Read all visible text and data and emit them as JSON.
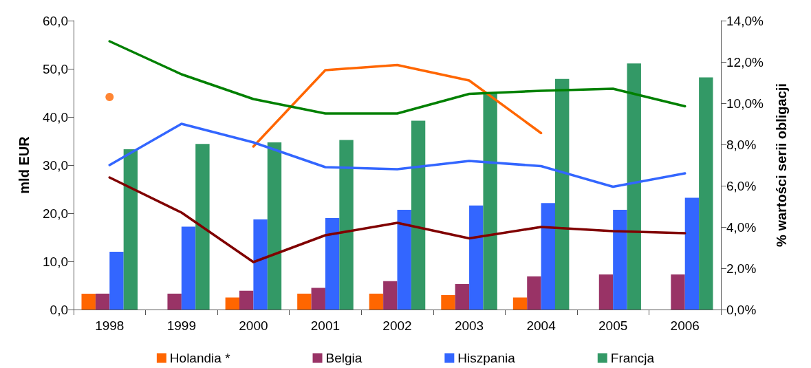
{
  "chart_data": {
    "type": "bar",
    "ylabel": "mld EUR",
    "y2label": "% wartości serii obligacji",
    "categories": [
      "1998",
      "1999",
      "2000",
      "2001",
      "2002",
      "2003",
      "2004",
      "2005",
      "2006"
    ],
    "series": [
      {
        "name": "Holandia *",
        "color": "#ff6600",
        "values": [
          3.3,
          null,
          2.5,
          3.3,
          3.3,
          3.0,
          2.5,
          null,
          null
        ]
      },
      {
        "name": "Belgia",
        "color": "#993366",
        "values": [
          3.3,
          3.3,
          3.9,
          4.5,
          5.9,
          5.3,
          6.9,
          7.3,
          7.3
        ]
      },
      {
        "name": "Hiszpania",
        "color": "#3366ff",
        "values": [
          12.0,
          17.2,
          18.7,
          19.0,
          20.7,
          21.6,
          22.1,
          20.7,
          23.2
        ]
      },
      {
        "name": "Francja",
        "color": "#339966",
        "values": [
          33.3,
          34.4,
          34.7,
          35.2,
          39.2,
          44.9,
          47.9,
          51.1,
          48.2
        ]
      },
      {
        "type": "scatter",
        "axis": "y2",
        "marker": "circle",
        "color": "#ff6600",
        "values": [
          10.3,
          null,
          null,
          null,
          null,
          null,
          null,
          null,
          null
        ]
      },
      {
        "type": "line",
        "axis": "y2",
        "color": "#ff6600",
        "values": [
          null,
          null,
          7.9,
          11.6,
          11.85,
          11.1,
          8.55,
          null,
          null
        ]
      },
      {
        "type": "line",
        "axis": "y2",
        "color": "#800000",
        "values": [
          6.4,
          4.7,
          2.3,
          3.6,
          4.2,
          3.45,
          4.0,
          3.8,
          3.7
        ]
      },
      {
        "type": "line",
        "axis": "y2",
        "color": "#3366ff",
        "values": [
          7.0,
          9.0,
          8.1,
          6.9,
          6.8,
          7.2,
          6.95,
          5.95,
          6.6
        ]
      },
      {
        "type": "line",
        "axis": "y2",
        "color": "#008000",
        "values": [
          13.0,
          11.4,
          10.2,
          9.5,
          9.5,
          10.45,
          10.6,
          10.7,
          9.85
        ]
      }
    ],
    "ylim": [
      0,
      60
    ],
    "yticks": [
      {
        "value": 0,
        "label": "0,0"
      },
      {
        "value": 10,
        "label": "10,0"
      },
      {
        "value": 20,
        "label": "20,0"
      },
      {
        "value": 30,
        "label": "30,0"
      },
      {
        "value": 40,
        "label": "40,0"
      },
      {
        "value": 50,
        "label": "50,0"
      },
      {
        "value": 60,
        "label": "60,0"
      }
    ],
    "y2lim": [
      0,
      14
    ],
    "y2ticks": [
      {
        "value": 0,
        "label": "0,0%"
      },
      {
        "value": 2,
        "label": "2,0%"
      },
      {
        "value": 4,
        "label": "4,0%"
      },
      {
        "value": 6,
        "label": "6,0%"
      },
      {
        "value": 8,
        "label": "8,0%"
      },
      {
        "value": 10,
        "label": "10,0%"
      },
      {
        "value": 12,
        "label": "12,0%"
      },
      {
        "value": 14,
        "label": "14,0%"
      }
    ],
    "grid": false,
    "legend": "bottom",
    "marker": "none",
    "line_style": "solid"
  }
}
